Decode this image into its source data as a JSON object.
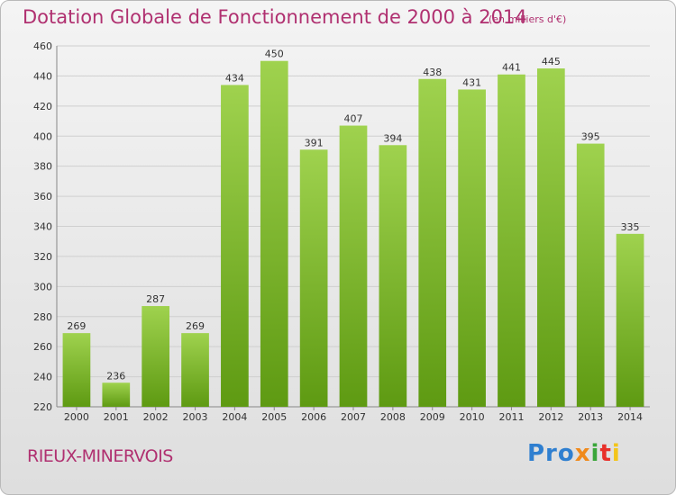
{
  "chart_data": {
    "type": "bar",
    "title": "Dotation Globale de Fonctionnement de 2000 à 2014",
    "unit_label": "(en milliers d'€)",
    "categories": [
      "2000",
      "2001",
      "2002",
      "2003",
      "2004",
      "2005",
      "2006",
      "2007",
      "2008",
      "2009",
      "2010",
      "2011",
      "2012",
      "2013",
      "2014"
    ],
    "values": [
      269,
      236,
      287,
      269,
      434,
      450,
      391,
      407,
      394,
      438,
      431,
      441,
      445,
      395,
      335
    ],
    "ylim": [
      220,
      460
    ],
    "yticks": [
      220,
      240,
      260,
      280,
      300,
      320,
      340,
      360,
      380,
      400,
      420,
      440,
      460
    ],
    "grid": true,
    "bar_color": "#7cbd2e"
  },
  "footer": {
    "commune": "RIEUX-MINERVOIS",
    "logo": [
      "Pro",
      "x",
      "i",
      "t",
      "i"
    ]
  }
}
